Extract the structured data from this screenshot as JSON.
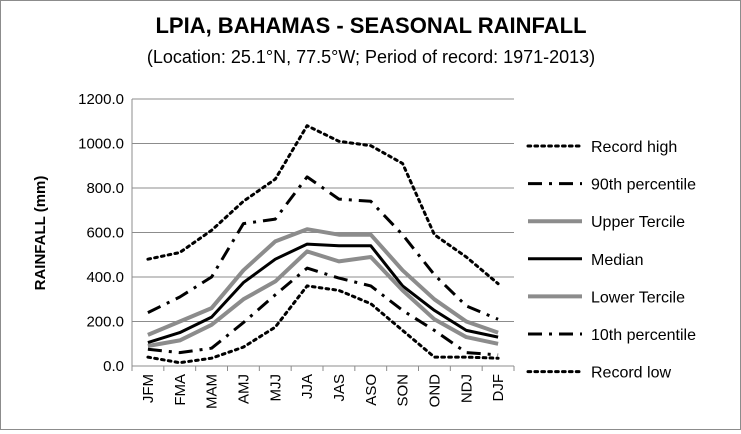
{
  "chart_data": {
    "type": "line",
    "title": "LPIA, BAHAMAS - SEASONAL RAINFALL",
    "subtitle": "(Location: 25.1°N, 77.5°W; Period of record: 1971-2013)",
    "xlabel": "",
    "ylabel": "RAINFALL (mm)",
    "ylim": [
      0,
      1200
    ],
    "ytick_labels": [
      "0.0",
      "200.0",
      "400.0",
      "600.0",
      "800.0",
      "1000.0",
      "1200.0"
    ],
    "ytick_values": [
      0,
      200,
      400,
      600,
      800,
      1000,
      1200
    ],
    "categories": [
      "JFM",
      "FMA",
      "MAM",
      "AMJ",
      "MJJ",
      "JJA",
      "JAS",
      "ASO",
      "SON",
      "OND",
      "NDJ",
      "DJF"
    ],
    "grid": true,
    "legend_position": "right",
    "series": [
      {
        "name": "Record high",
        "style": "dotted",
        "color": "#000000",
        "width": 3,
        "values": [
          480,
          510,
          610,
          740,
          840,
          1080,
          1010,
          990,
          910,
          590,
          490,
          370
        ]
      },
      {
        "name": "90th percentile",
        "style": "dashdot",
        "color": "#000000",
        "width": 3,
        "values": [
          240,
          310,
          400,
          640,
          660,
          850,
          750,
          740,
          590,
          410,
          270,
          210
        ]
      },
      {
        "name": "Upper Tercile",
        "style": "solid",
        "color": "#8c8c8c",
        "width": 4,
        "values": [
          140,
          200,
          260,
          430,
          560,
          615,
          590,
          590,
          430,
          300,
          200,
          150
        ]
      },
      {
        "name": "Median",
        "style": "solid",
        "color": "#000000",
        "width": 3,
        "values": [
          105,
          150,
          220,
          375,
          480,
          548,
          540,
          540,
          360,
          250,
          160,
          130
        ]
      },
      {
        "name": "Lower Tercile",
        "style": "solid",
        "color": "#8c8c8c",
        "width": 4,
        "values": [
          90,
          115,
          185,
          300,
          380,
          515,
          470,
          490,
          340,
          210,
          130,
          100
        ]
      },
      {
        "name": "10th percentile",
        "style": "dashdot",
        "color": "#000000",
        "width": 3,
        "values": [
          75,
          60,
          80,
          195,
          320,
          440,
          395,
          360,
          250,
          160,
          60,
          50
        ]
      },
      {
        "name": "Record low",
        "style": "dotted",
        "color": "#000000",
        "width": 3,
        "values": [
          40,
          15,
          35,
          85,
          175,
          360,
          340,
          280,
          160,
          40,
          40,
          35
        ]
      }
    ]
  }
}
